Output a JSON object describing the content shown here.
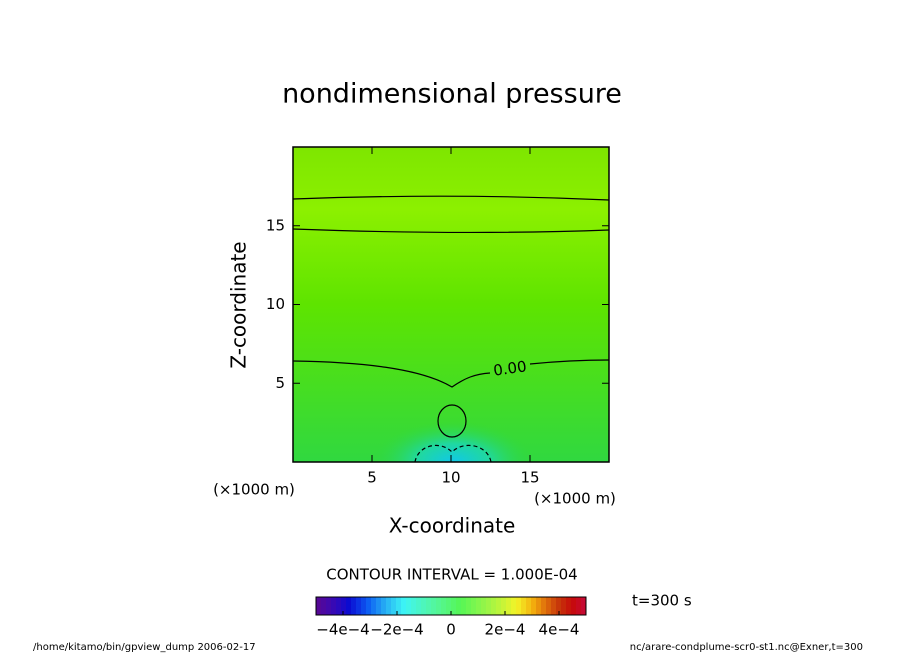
{
  "chart_data": {
    "type": "contour",
    "title": "nondimensional pressure",
    "x_label": "X-coordinate",
    "y_label": "Z-coordinate",
    "x_unit": "(×1000 m)",
    "y_unit": "(×1000 m)",
    "xlim": [
      0,
      20
    ],
    "ylim": [
      0,
      20
    ],
    "xticks": [
      5,
      10,
      15
    ],
    "yticks": [
      5,
      10,
      15
    ],
    "contour_label": "0.00",
    "contour_interval_label": "CONTOUR INTERVAL = 1.000E-04",
    "colorbar": {
      "lim": [
        -0.0005,
        0.0005
      ],
      "ticks": [
        {
          "value": -0.0004,
          "label": "−4e−4"
        },
        {
          "value": -0.0002,
          "label": "−2e−4"
        },
        {
          "value": 0,
          "label": "0"
        },
        {
          "value": 0.0002,
          "label": "2e−4"
        },
        {
          "value": 0.0004,
          "label": "4e−4"
        }
      ]
    },
    "time_label": "t=300 s",
    "footer_left": "/home/kitamo/bin/gpview_dump  2006-02-17",
    "footer_right": "nc/arare-condplume-scr0-st1.nc@Exner,t=300"
  }
}
